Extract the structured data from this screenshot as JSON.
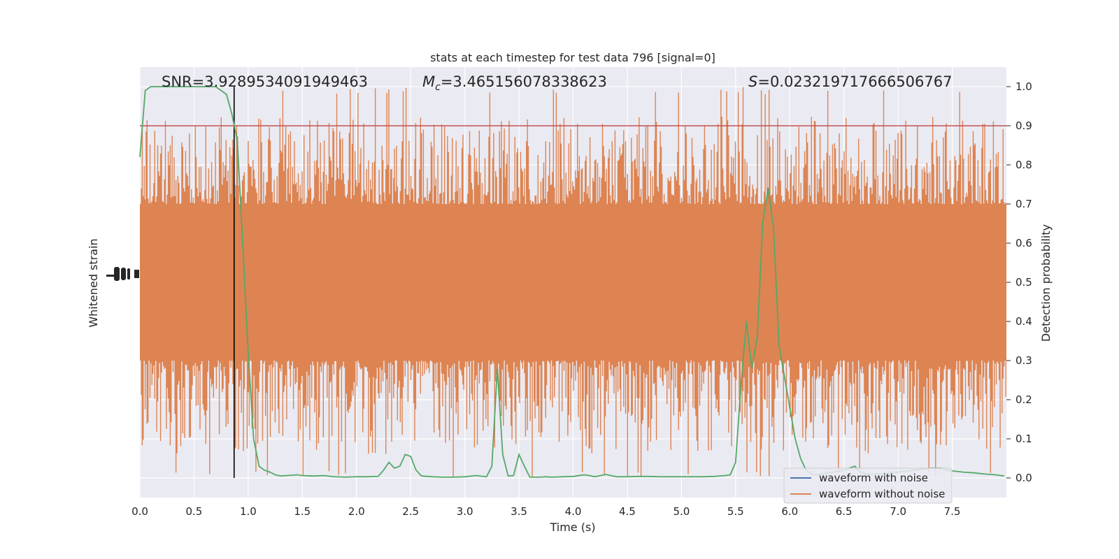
{
  "chart_data": {
    "type": "line",
    "title": "stats at each timestep for test data 796 [signal=0]",
    "xlabel": "Time (s)",
    "ylabel_left": "Whitened strain",
    "ylabel_right": "Detection probability",
    "xlim": [
      0,
      8
    ],
    "ylim_right": [
      -0.05,
      1.05
    ],
    "x_ticks": [
      "0.0",
      "0.5",
      "1.0",
      "1.5",
      "2.0",
      "2.5",
      "3.0",
      "3.5",
      "4.0",
      "4.5",
      "5.0",
      "5.5",
      "6.0",
      "6.5",
      "7.0",
      "7.5"
    ],
    "y_ticks_right": [
      "0.0",
      "0.1",
      "0.2",
      "0.3",
      "0.4",
      "0.5",
      "0.6",
      "0.7",
      "0.8",
      "0.9",
      "1.0"
    ],
    "grid": true,
    "legend_position": "bottom-right",
    "annotations": {
      "snr": "SNR=3.9289534091949463",
      "mc_symbol": "M",
      "mc_sub": "c",
      "mc_value": "=3.465156078338623",
      "s_symbol": "S",
      "s_value": "=0.023219717666506767"
    },
    "threshold": 0.9,
    "marker_time": 0.87,
    "series": [
      {
        "name": "waveform with noise",
        "color": "#4c72b0"
      },
      {
        "name": "waveform without noise",
        "color": "#dd8452"
      }
    ],
    "strain_band": {
      "core_low": 0.3,
      "core_high": 0.7,
      "spike_low_min": 0.0,
      "spike_high_max": 1.0
    },
    "detection_probability": {
      "color": "#55a868",
      "x": [
        0.0,
        0.05,
        0.1,
        0.15,
        0.2,
        0.3,
        0.4,
        0.5,
        0.6,
        0.7,
        0.75,
        0.8,
        0.85,
        0.9,
        0.95,
        1.0,
        1.05,
        1.1,
        1.15,
        1.2,
        1.25,
        1.3,
        1.35,
        1.4,
        1.45,
        1.5,
        1.6,
        1.7,
        1.8,
        1.9,
        2.0,
        2.1,
        2.2,
        2.25,
        2.3,
        2.35,
        2.4,
        2.45,
        2.5,
        2.55,
        2.6,
        2.7,
        2.8,
        2.9,
        3.0,
        3.1,
        3.2,
        3.25,
        3.3,
        3.35,
        3.4,
        3.45,
        3.5,
        3.55,
        3.6,
        3.65,
        3.7,
        3.75,
        3.8,
        3.9,
        4.0,
        4.1,
        4.15,
        4.2,
        4.3,
        4.35,
        4.4,
        4.5,
        4.6,
        4.7,
        4.8,
        4.9,
        5.0,
        5.1,
        5.2,
        5.3,
        5.4,
        5.45,
        5.5,
        5.55,
        5.6,
        5.65,
        5.7,
        5.75,
        5.8,
        5.85,
        5.9,
        5.95,
        6.0,
        6.05,
        6.1,
        6.15,
        6.2,
        6.25,
        6.3,
        6.4,
        6.5,
        6.6,
        6.65,
        6.7,
        6.8,
        6.9,
        7.0,
        7.1,
        7.2,
        7.3,
        7.4,
        7.45,
        7.5,
        7.6,
        7.7,
        7.8,
        7.9,
        7.98
      ],
      "y": [
        0.82,
        0.99,
        1.0,
        1.0,
        1.0,
        1.0,
        1.0,
        1.0,
        1.0,
        1.0,
        0.99,
        0.98,
        0.93,
        0.86,
        0.6,
        0.32,
        0.1,
        0.03,
        0.02,
        0.015,
        0.008,
        0.005,
        0.006,
        0.007,
        0.008,
        0.006,
        0.005,
        0.006,
        0.003,
        0.002,
        0.003,
        0.003,
        0.004,
        0.02,
        0.04,
        0.025,
        0.03,
        0.06,
        0.055,
        0.02,
        0.005,
        0.003,
        0.002,
        0.002,
        0.003,
        0.006,
        0.003,
        0.03,
        0.28,
        0.06,
        0.005,
        0.006,
        0.06,
        0.03,
        0.002,
        0.002,
        0.002,
        0.003,
        0.002,
        0.003,
        0.004,
        0.008,
        0.006,
        0.003,
        0.009,
        0.006,
        0.003,
        0.003,
        0.004,
        0.004,
        0.003,
        0.003,
        0.003,
        0.003,
        0.003,
        0.004,
        0.006,
        0.008,
        0.04,
        0.24,
        0.4,
        0.28,
        0.36,
        0.65,
        0.74,
        0.64,
        0.34,
        0.26,
        0.18,
        0.1,
        0.05,
        0.02,
        0.01,
        0.008,
        0.01,
        0.015,
        0.02,
        0.03,
        0.015,
        0.01,
        0.01,
        0.012,
        0.015,
        0.018,
        0.022,
        0.025,
        0.025,
        0.02,
        0.018,
        0.015,
        0.013,
        0.01,
        0.008,
        0.005
      ]
    }
  }
}
